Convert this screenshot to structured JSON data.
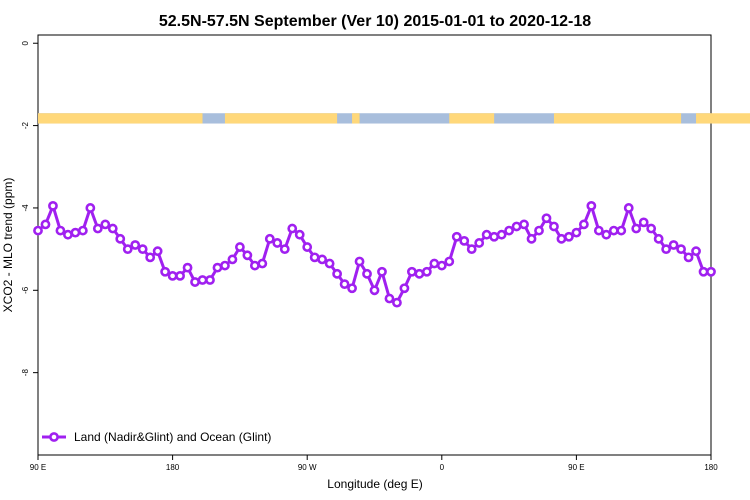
{
  "chart_data": {
    "type": "line",
    "title": "52.5N-57.5N September (Ver 10)   2015-01-01 to 2020-12-18",
    "xlabel": "Longitude (deg E)",
    "ylabel": "XCO2 - MLO trend (ppm)",
    "x_tick_labels": [
      "90 E",
      "180",
      "90 W",
      "0",
      "90 E",
      "180"
    ],
    "y_tick_labels": [
      "0",
      "-2",
      "-4",
      "-6",
      "-8"
    ],
    "ylim": [
      -10,
      0.2
    ],
    "legend": {
      "position": "bottom-left",
      "entries": [
        "Land (Nadir&Glint) and Ocean (Glint)"
      ]
    },
    "colors": {
      "series": "#a020f0",
      "land": "#ffd87a",
      "ocean": "#a8bedc"
    },
    "land_ocean_strip": {
      "y_range": [
        -1.95,
        -1.7
      ],
      "land_spans_deg": [
        [
          90,
          200
        ],
        [
          215,
          290
        ],
        [
          300,
          305
        ],
        [
          365,
          395
        ],
        [
          435,
          520
        ],
        [
          530,
          610
        ]
      ]
    },
    "series": [
      {
        "name": "Land (Nadir&Glint) and Ocean (Glint)",
        "x": [
          90,
          95,
          100,
          105,
          110,
          115,
          120,
          125,
          130,
          135,
          140,
          145,
          150,
          155,
          160,
          165,
          170,
          175,
          180,
          185,
          190,
          195,
          200,
          205,
          210,
          215,
          220,
          225,
          230,
          235,
          240,
          245,
          250,
          255,
          260,
          265,
          270,
          275,
          280,
          285,
          290,
          295,
          300,
          305,
          310,
          315,
          320,
          325,
          330,
          335,
          340,
          345,
          350,
          355,
          360,
          365,
          370,
          375,
          380,
          385,
          390,
          395,
          400,
          405,
          410,
          415,
          420,
          425,
          430,
          435,
          440,
          445,
          450,
          455,
          460,
          465,
          470,
          475,
          480,
          485,
          490,
          495,
          500,
          505,
          510,
          515,
          520,
          525,
          530,
          535,
          540
        ],
        "y": [
          -4.55,
          -4.4,
          -3.95,
          -4.55,
          -4.65,
          -4.6,
          -4.55,
          -4.0,
          -4.5,
          -4.4,
          -4.5,
          -4.75,
          -5.0,
          -4.9,
          -5.0,
          -5.2,
          -5.05,
          -5.55,
          -5.65,
          -5.65,
          -5.45,
          -5.8,
          -5.75,
          -5.75,
          -5.45,
          -5.4,
          -5.25,
          -4.95,
          -5.15,
          -5.4,
          -5.35,
          -4.75,
          -4.85,
          -5.0,
          -4.5,
          -4.65,
          -4.95,
          -5.2,
          -5.25,
          -5.35,
          -5.6,
          -5.85,
          -5.95,
          -5.3,
          -5.6,
          -6.0,
          -5.55,
          -6.2,
          -6.3,
          -5.95,
          -5.55,
          -5.6,
          -5.55,
          -5.35,
          -5.4,
          -5.3,
          -4.7,
          -4.8,
          -5.0,
          -4.85,
          -4.65,
          -4.7,
          -4.65,
          -4.55,
          -4.45,
          -4.4,
          -4.75,
          -4.55,
          -4.25,
          -4.45,
          -4.75,
          -4.7,
          -4.6,
          -4.4,
          -3.95,
          -4.55,
          -4.65,
          -4.55,
          -4.55,
          -4.0,
          -4.5,
          -4.35,
          -4.5,
          -4.75,
          -5.0,
          -4.9,
          -5.0,
          -5.2,
          -5.05,
          -5.55,
          -5.55
        ]
      }
    ]
  }
}
